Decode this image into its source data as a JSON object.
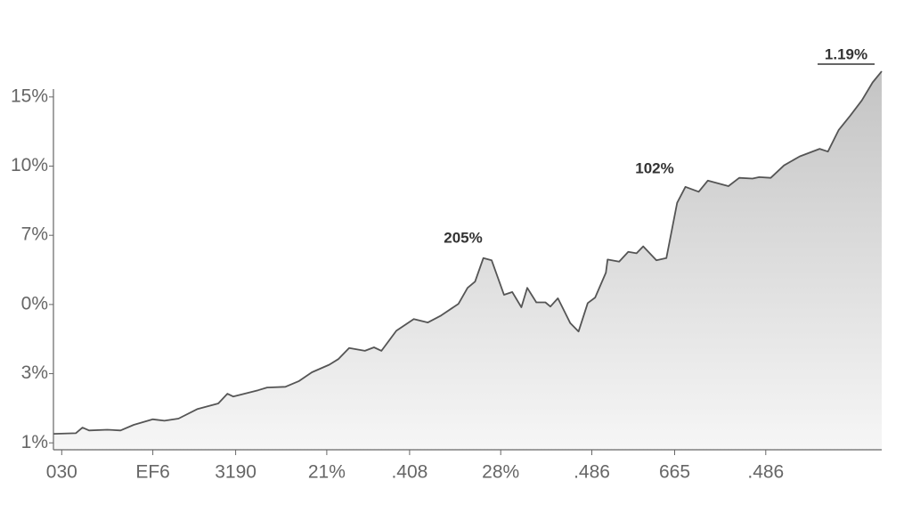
{
  "chart_data": {
    "type": "area",
    "annotations": [
      "205%",
      "102%",
      "1.19%"
    ],
    "x": [
      0,
      2.7,
      3.5,
      4.3,
      6.5,
      8.1,
      9.7,
      12.0,
      13.4,
      15.1,
      17.4,
      19.9,
      21.0,
      21.7,
      24.7,
      25.8,
      28.0,
      29.6,
      31.2,
      33.3,
      34.4,
      35.7,
      37.6,
      38.7,
      39.6,
      41.4,
      43.5,
      45.2,
      46.8,
      48.9,
      50.0,
      50.9,
      51.9,
      52.9,
      54.4,
      55.4,
      56.5,
      57.2,
      58.3,
      59.4,
      60.0,
      60.9,
      62.4,
      63.4,
      64.5,
      65.4,
      66.7,
      66.9,
      68.3,
      69.4,
      70.4,
      71.2,
      72.8,
      74.0,
      75.3,
      76.3,
      77.9,
      79.0,
      81.5,
      82.8,
      84.4,
      85.2,
      86.6,
      88.2,
      90.1,
      92.5,
      93.5,
      94.8,
      96.2,
      97.6,
      98.9,
      100
    ],
    "values": [
      0.13,
      0.14,
      0.22,
      0.18,
      0.19,
      0.18,
      0.26,
      0.34,
      0.32,
      0.35,
      0.49,
      0.57,
      0.71,
      0.67,
      0.76,
      0.8,
      0.81,
      0.89,
      1.02,
      1.13,
      1.21,
      1.37,
      1.33,
      1.38,
      1.33,
      1.62,
      1.79,
      1.74,
      1.84,
      2.01,
      2.24,
      2.33,
      2.67,
      2.64,
      2.14,
      2.18,
      1.96,
      2.24,
      2.03,
      2.03,
      1.97,
      2.09,
      1.73,
      1.61,
      2.02,
      2.1,
      2.46,
      2.65,
      2.62,
      2.76,
      2.74,
      2.84,
      2.64,
      2.67,
      3.47,
      3.7,
      3.63,
      3.79,
      3.71,
      3.83,
      3.82,
      3.84,
      3.83,
      4.01,
      4.14,
      4.25,
      4.21,
      4.52,
      4.73,
      4.95,
      5.21,
      5.37
    ],
    "color": "#555555",
    "xlim": [
      0,
      100
    ],
    "xticks": [
      {
        "value": 1,
        "label": "030"
      },
      {
        "value": 12,
        "label": "EF6"
      },
      {
        "value": 22,
        "label": "3190"
      },
      {
        "value": 33,
        "label": "21%"
      },
      {
        "value": 43,
        "label": ".408"
      },
      {
        "value": 54,
        "label": "28%"
      },
      {
        "value": 65,
        "label": ".486"
      },
      {
        "value": 75,
        "label": "665"
      },
      {
        "value": 86,
        "label": ".486"
      }
    ],
    "ylim": [
      -0.1,
      5.5
    ],
    "yticks": [
      {
        "value": 0,
        "label": "1%"
      },
      {
        "value": 1,
        "label": "3%"
      },
      {
        "value": 2,
        "label": "0%"
      },
      {
        "value": 3,
        "label": "7%"
      },
      {
        "value": 4,
        "label": "10%"
      },
      {
        "value": 5,
        "label": "15%"
      }
    ]
  }
}
